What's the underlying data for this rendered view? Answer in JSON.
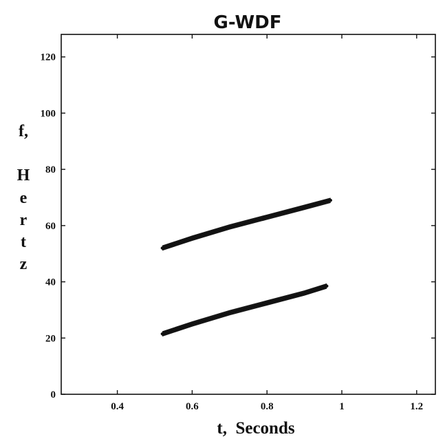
{
  "chart_data": {
    "type": "line",
    "title": "G-WDF",
    "xlabel": "t,  Seconds",
    "ylabel": "f, Hertz",
    "ylabel_lines": [
      "f,",
      "H",
      "e",
      "r",
      "t",
      "z"
    ],
    "xlim": [
      0.25,
      1.25
    ],
    "ylim": [
      0,
      128
    ],
    "xticks": [
      0.4,
      0.6,
      0.8,
      1,
      1.2
    ],
    "xtick_labels": [
      "0.4",
      "0.6",
      "0.8",
      "1",
      "1.2"
    ],
    "yticks": [
      0,
      20,
      40,
      60,
      80,
      100,
      120
    ],
    "ytick_labels": [
      "0",
      "20",
      "40",
      "60",
      "80",
      "100",
      "120"
    ],
    "grid": false,
    "series": [
      {
        "x": [
          0.52,
          0.6,
          0.7,
          0.8,
          0.9,
          0.97
        ],
        "y": [
          52,
          55.5,
          59.5,
          63,
          66.5,
          69
        ]
      },
      {
        "x": [
          0.52,
          0.6,
          0.7,
          0.8,
          0.9,
          0.96
        ],
        "y": [
          21.5,
          25,
          29,
          32.5,
          36,
          38.5
        ]
      }
    ]
  },
  "colors": {
    "line": "#111111",
    "axis": "#111111",
    "background": "#ffffff"
  }
}
